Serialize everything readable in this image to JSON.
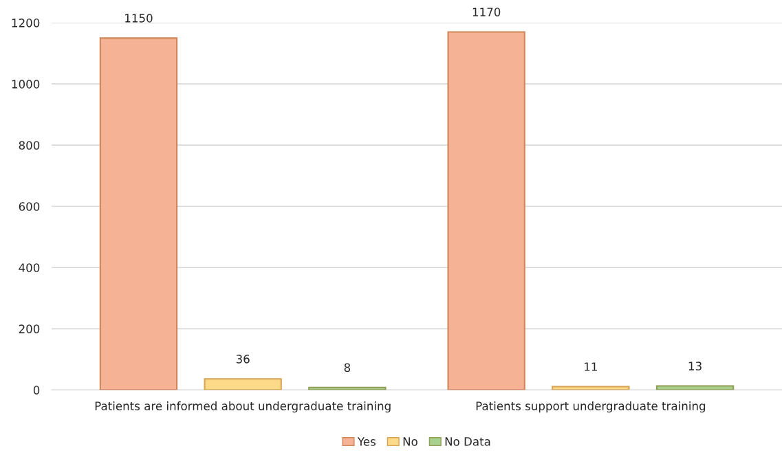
{
  "chart_data": {
    "type": "bar",
    "categories": [
      "Patients are informed about undergraduate training",
      "Patients support undergraduate training"
    ],
    "series": [
      {
        "name": "Yes",
        "color": "#f5b294",
        "values": [
          1150,
          1170
        ]
      },
      {
        "name": "No",
        "color": "#fdd98a",
        "values": [
          36,
          11
        ]
      },
      {
        "name": "No Data",
        "color": "#a9d18e",
        "values": [
          8,
          13
        ]
      }
    ],
    "ylim": [
      0,
      1200
    ],
    "yticks": [
      0,
      200,
      400,
      600,
      800,
      1000,
      1200
    ],
    "grid": "y",
    "legend": "bottom",
    "data_labels": true
  }
}
